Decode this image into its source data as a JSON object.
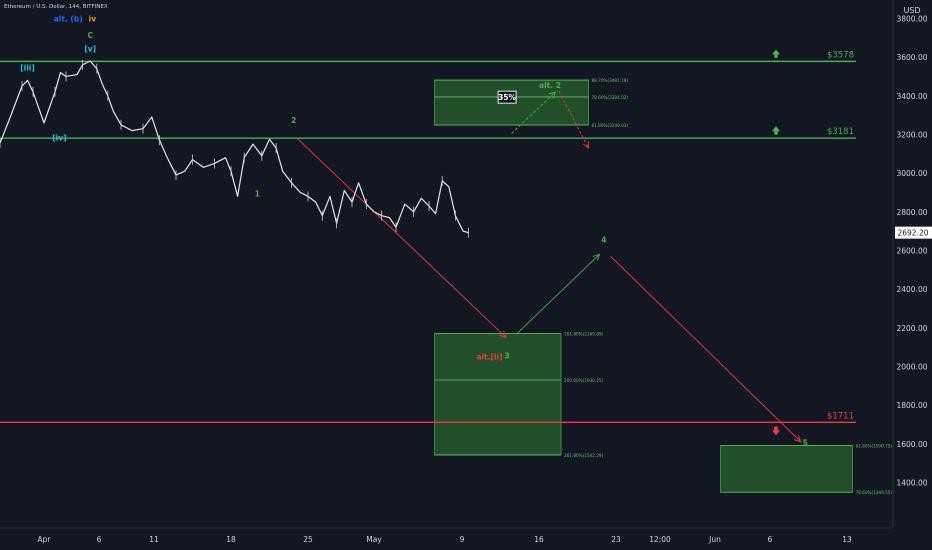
{
  "header": {
    "symbol_title": "Ethereum / U.S. Dollar, 144, BITFINEX"
  },
  "currency_label": "USD",
  "chart_data": {
    "type": "line",
    "title": "Ethereum / U.S. Dollar, 144, BITFINEX",
    "xlabel": "",
    "ylabel": "USD",
    "ylim": [
      1200,
      3900
    ],
    "grid": false,
    "x_start": "2022-03-28",
    "y_ticks": [
      1400,
      1600,
      1800,
      2000,
      2200,
      2400,
      2600,
      2800,
      3000,
      3200,
      3400,
      3600,
      3800
    ],
    "y_tick_labels": [
      "1400.00",
      "1600.00",
      "1800.00",
      "2000.00",
      "2200.00",
      "2400.00",
      "2600.00",
      "2800.00",
      "3000.00",
      "3200.00",
      "3400.00",
      "3600.00",
      "3800.00"
    ],
    "x_ticks": [
      {
        "label": "Apr",
        "x": 4
      },
      {
        "label": "6",
        "x": 9
      },
      {
        "label": "11",
        "x": 14
      },
      {
        "label": "18",
        "x": 21
      },
      {
        "label": "25",
        "x": 28
      },
      {
        "label": "May",
        "x": 34
      },
      {
        "label": "9",
        "x": 42
      },
      {
        "label": "16",
        "x": 49
      },
      {
        "label": "23",
        "x": 56
      },
      {
        "label": "12:00",
        "x": 60
      },
      {
        "label": "Jun",
        "x": 65
      },
      {
        "label": "6",
        "x": 70
      },
      {
        "label": "13",
        "x": 77
      }
    ],
    "price_series": [
      [
        0,
        3155
      ],
      [
        1,
        3300
      ],
      [
        2,
        3450
      ],
      [
        2.5,
        3480
      ],
      [
        3,
        3420
      ],
      [
        4,
        3260
      ],
      [
        5,
        3420
      ],
      [
        5.5,
        3520
      ],
      [
        6,
        3500
      ],
      [
        7,
        3510
      ],
      [
        7.5,
        3560
      ],
      [
        8.2,
        3580
      ],
      [
        8.8,
        3540
      ],
      [
        9.3,
        3460
      ],
      [
        9.8,
        3400
      ],
      [
        10.3,
        3320
      ],
      [
        11,
        3250
      ],
      [
        12,
        3220
      ],
      [
        13,
        3230
      ],
      [
        13.8,
        3290
      ],
      [
        14.5,
        3170
      ],
      [
        15.2,
        3080
      ],
      [
        16,
        2990
      ],
      [
        16.8,
        3010
      ],
      [
        17.5,
        3070
      ],
      [
        18.5,
        3030
      ],
      [
        19.5,
        3050
      ],
      [
        20.5,
        3080
      ],
      [
        21,
        3010
      ],
      [
        21.6,
        2880
      ],
      [
        22.2,
        3080
      ],
      [
        23,
        3150
      ],
      [
        23.8,
        3090
      ],
      [
        24.5,
        3175
      ],
      [
        25.1,
        3130
      ],
      [
        25.7,
        3010
      ],
      [
        26.5,
        2950
      ],
      [
        27.3,
        2900
      ],
      [
        28,
        2880
      ],
      [
        28.7,
        2850
      ],
      [
        29.3,
        2780
      ],
      [
        30,
        2880
      ],
      [
        30.6,
        2740
      ],
      [
        31.3,
        2910
      ],
      [
        32,
        2850
      ],
      [
        32.6,
        2950
      ],
      [
        33.3,
        2840
      ],
      [
        34,
        2800
      ],
      [
        34.7,
        2780
      ],
      [
        35.4,
        2770
      ],
      [
        36,
        2720
      ],
      [
        36.8,
        2840
      ],
      [
        37.6,
        2800
      ],
      [
        38.3,
        2870
      ],
      [
        39,
        2830
      ],
      [
        39.6,
        2790
      ],
      [
        40.2,
        2960
      ],
      [
        40.8,
        2930
      ],
      [
        41.4,
        2780
      ],
      [
        42.1,
        2700
      ],
      [
        42.6,
        2692
      ]
    ],
    "horizontal_levels": [
      {
        "price": 3578,
        "label": "$3578",
        "color": "#4caf50",
        "direction": "up"
      },
      {
        "price": 3181,
        "label": "$3181",
        "color": "#4caf50",
        "direction": "up"
      },
      {
        "price": 1711,
        "label": "$1711",
        "color": "#f23645",
        "direction": "down"
      }
    ],
    "current_price": {
      "value": 2692.2,
      "label": "2692.20"
    },
    "zones": [
      {
        "x0": 39.5,
        "x1": 53.5,
        "y0": 3249.03,
        "y1": 3481.18,
        "levels": [
          {
            "price": 3481.18,
            "label": "88.70%(3481.18)"
          },
          {
            "price": 3394.02,
            "label": "78.60%(3394.02)"
          },
          {
            "price": 3249.03,
            "label": "61.80%(3249.03)"
          }
        ]
      },
      {
        "x0": 39.5,
        "x1": 51,
        "y0": 1542.29,
        "y1": 2169.89,
        "levels": [
          {
            "price": 2169.89,
            "label": "161.80%(2169.89)"
          },
          {
            "price": 1930.15,
            "label": "200.00%(1930.15)"
          },
          {
            "price": 1542.29,
            "label": "261.80%(1542.29)"
          }
        ]
      },
      {
        "x0": 65.5,
        "x1": 77.5,
        "y0": 1349.55,
        "y1": 1590.75,
        "levels": [
          {
            "price": 1590.75,
            "label": "61.80%(1590.75)"
          },
          {
            "price": 1349.55,
            "label": "78.60%(1349.55)"
          }
        ]
      }
    ],
    "wave_labels": [
      {
        "text": "alt. (b)",
        "x": 6.2,
        "price": 3785,
        "color": "#2962ff"
      },
      {
        "text": "iv",
        "x": 8.4,
        "price": 3785,
        "color": "#ff9800"
      },
      {
        "text": "C",
        "x": 8.2,
        "price": 3700,
        "color": "#4caf50"
      },
      {
        "text": "[v]",
        "x": 8.2,
        "price": 3630,
        "color": "#26c6da"
      },
      {
        "text": "[iii]",
        "x": 2.5,
        "price": 3530,
        "color": "#26c6da"
      },
      {
        "text": "[iv]",
        "x": 5.4,
        "price": 3170,
        "color": "#26c6da"
      },
      {
        "text": "1",
        "x": 23.4,
        "price": 2880,
        "color": "#4caf50"
      },
      {
        "text": "2",
        "x": 26.7,
        "price": 3260,
        "color": "#4caf50"
      },
      {
        "text": "alt. 2",
        "x": 50,
        "price": 3440,
        "color": "#4caf50"
      },
      {
        "text": "alt.[ii]",
        "x": 44.5,
        "price": 2035,
        "color": "#f23645"
      },
      {
        "text": "3",
        "x": 46.1,
        "price": 2040,
        "color": "#4caf50"
      },
      {
        "text": "4",
        "x": 54.9,
        "price": 2640,
        "color": "#4caf50"
      },
      {
        "text": "5",
        "x": 73.2,
        "price": 1590,
        "color": "#4caf50"
      }
    ],
    "projection_arrows": [
      {
        "from": [
          27,
          3181
        ],
        "to": [
          46,
          2150
        ],
        "color": "#f23645",
        "dashed": false
      },
      {
        "from": [
          47,
          2170
        ],
        "to": [
          54.5,
          2580
        ],
        "color": "#4caf50",
        "dashed": false
      },
      {
        "from": [
          55.5,
          2570
        ],
        "to": [
          72.8,
          1610
        ],
        "color": "#f23645",
        "dashed": false
      },
      {
        "from": [
          46.5,
          3205
        ],
        "to": [
          50.5,
          3420
        ],
        "color": "#4caf50",
        "dashed": true
      },
      {
        "from": [
          50.8,
          3425
        ],
        "to": [
          53.5,
          3130
        ],
        "color": "#f23645",
        "dashed": true
      }
    ],
    "probability_label": {
      "text": "35%",
      "x": 46.1,
      "price": 3393
    }
  }
}
